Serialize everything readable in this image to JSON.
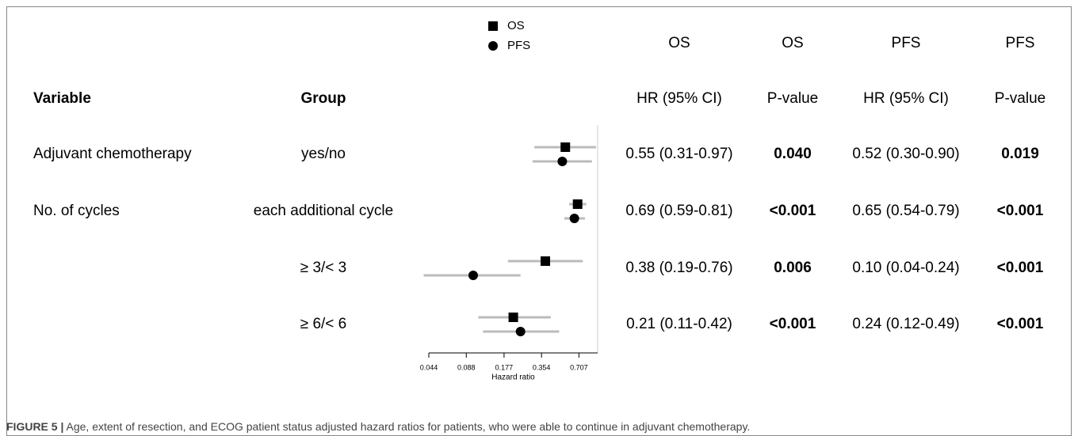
{
  "chart_data": {
    "type": "forest",
    "column_groups": [
      "OS",
      "OS",
      "PFS",
      "PFS"
    ],
    "columns": [
      "Variable",
      "Group",
      "HR (95% CI)",
      "P-value",
      "HR (95% CI)",
      "P-value"
    ],
    "variables": [
      "Adjuvant chemotherapy",
      "No. of cycles",
      null,
      null
    ],
    "categories": [
      "yes/no",
      "each additional cycle",
      "≥ 3/< 3",
      "≥ 6/< 6"
    ],
    "series": [
      {
        "name": "OS",
        "color": "#000000",
        "marker": "square",
        "values": [
          0.55,
          0.69,
          0.38,
          0.21
        ],
        "lower": [
          0.31,
          0.59,
          0.19,
          0.11
        ],
        "upper": [
          0.97,
          0.81,
          0.76,
          0.42
        ],
        "value_labels": [
          "0.55 (0.31-0.97)",
          "0.69 (0.59-0.81)",
          "0.38 (0.19-0.76)",
          "0.21 (0.11-0.42)"
        ],
        "p_values": [
          "0.040",
          "<0.001",
          "0.006",
          "<0.001"
        ]
      },
      {
        "name": "PFS",
        "color": "#000000",
        "marker": "circle",
        "values": [
          0.52,
          0.65,
          0.1,
          0.24
        ],
        "lower": [
          0.3,
          0.54,
          0.04,
          0.12
        ],
        "upper": [
          0.9,
          0.79,
          0.24,
          0.49
        ],
        "value_labels": [
          "0.52 (0.30-0.90)",
          "0.65 (0.54-0.79)",
          "0.10 (0.04-0.24)",
          "0.24 (0.12-0.49)"
        ],
        "p_values": [
          "0.019",
          "<0.001",
          "<0.001",
          "<0.001"
        ]
      }
    ],
    "ci_color": "#bbbbbb",
    "xlabel": "Hazard ratio",
    "log_x": true,
    "xlim": [
      0.044,
      1
    ],
    "xticks": [
      0.044,
      0.088,
      0.177,
      0.354,
      0.707
    ],
    "caption": {
      "label": "FIGURE 5 |",
      "text": "Age, extent of resection, and ECOG patient status adjusted hazard ratios for patients, who were able to continue in adjuvant chemotherapy."
    }
  }
}
